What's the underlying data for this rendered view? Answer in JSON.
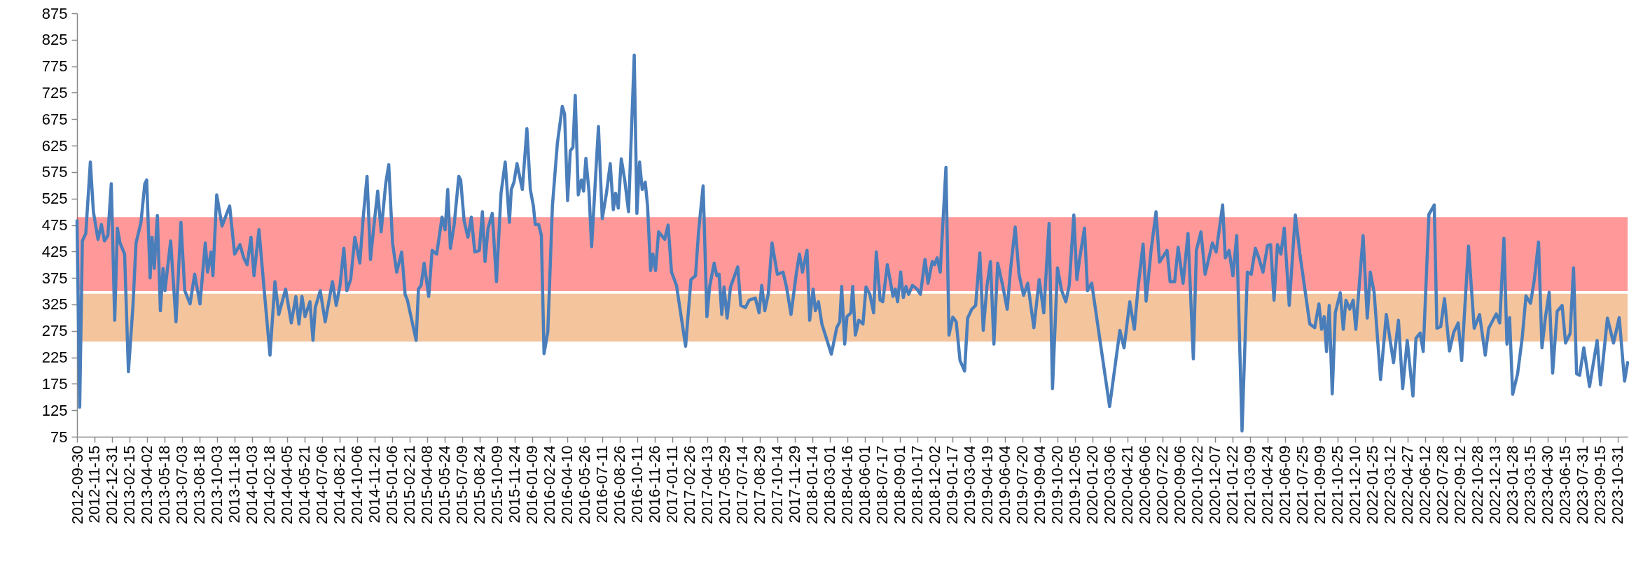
{
  "chart_data": {
    "type": "line",
    "x": [
      "2012-09-30",
      "2012-10-07",
      "2012-10-14",
      "2012-10-23",
      "2012-11-04",
      "2012-11-12",
      "2012-11-24",
      "2012-12-03",
      "2012-12-11",
      "2012-12-20",
      "2012-12-29",
      "2013-01-07",
      "2013-01-14",
      "2013-01-21",
      "2013-02-02",
      "2013-02-12",
      "2013-02-24",
      "2013-03-04",
      "2013-03-17",
      "2013-03-27",
      "2013-04-01",
      "2013-04-10",
      "2013-04-15",
      "2013-04-21",
      "2013-04-29",
      "2013-05-07",
      "2013-05-14",
      "2013-05-19",
      "2013-06-03",
      "2013-06-17",
      "2013-06-30",
      "2013-07-10",
      "2013-07-24",
      "2013-08-05",
      "2013-08-19",
      "2013-09-02",
      "2013-09-08",
      "2013-09-17",
      "2013-09-22",
      "2013-10-02",
      "2013-10-16",
      "2013-11-05",
      "2013-11-18",
      "2013-12-02",
      "2013-12-12",
      "2013-12-21",
      "2013-12-31",
      "2014-01-08",
      "2014-01-21",
      "2014-02-03",
      "2014-02-19",
      "2014-03-04",
      "2014-03-14",
      "2014-04-01",
      "2014-04-16",
      "2014-04-28",
      "2014-05-06",
      "2014-05-14",
      "2014-05-22",
      "2014-06-04",
      "2014-06-12",
      "2014-06-18",
      "2014-07-01",
      "2014-07-14",
      "2014-08-02",
      "2014-08-12",
      "2014-08-22",
      "2014-09-01",
      "2014-09-09",
      "2014-09-19",
      "2014-09-30",
      "2014-10-13",
      "2014-10-22",
      "2014-11-01",
      "2014-11-10",
      "2014-11-20",
      "2014-11-29",
      "2014-12-08",
      "2014-12-20",
      "2014-12-28",
      "2015-01-07",
      "2015-01-18",
      "2015-01-31",
      "2015-02-09",
      "2015-02-15",
      "2015-03-10",
      "2015-03-16",
      "2015-03-23",
      "2015-03-31",
      "2015-04-12",
      "2015-04-21",
      "2015-05-03",
      "2015-05-17",
      "2015-05-25",
      "2015-06-01",
      "2015-06-08",
      "2015-06-18",
      "2015-06-30",
      "2015-07-05",
      "2015-07-14",
      "2015-07-24",
      "2015-08-02",
      "2015-08-11",
      "2015-08-23",
      "2015-08-31",
      "2015-09-07",
      "2015-09-15",
      "2015-09-26",
      "2015-10-07",
      "2015-10-19",
      "2015-10-30",
      "2015-11-10",
      "2015-11-15",
      "2015-11-22",
      "2015-11-30",
      "2015-12-14",
      "2015-12-26",
      "2016-01-04",
      "2016-01-12",
      "2016-01-17",
      "2016-01-26",
      "2016-02-02",
      "2016-02-09",
      "2016-02-19",
      "2016-03-02",
      "2016-03-15",
      "2016-03-28",
      "2016-04-03",
      "2016-04-11",
      "2016-04-18",
      "2016-04-25",
      "2016-05-01",
      "2016-05-09",
      "2016-05-17",
      "2016-05-23",
      "2016-05-29",
      "2016-06-06",
      "2016-06-13",
      "2016-07-01",
      "2016-07-11",
      "2016-07-22",
      "2016-08-01",
      "2016-08-09",
      "2016-08-15",
      "2016-08-22",
      "2016-08-30",
      "2016-09-08",
      "2016-09-18",
      "2016-10-03",
      "2016-10-10",
      "2016-10-17",
      "2016-10-24",
      "2016-11-01",
      "2016-11-07",
      "2016-11-15",
      "2016-11-21",
      "2016-11-28",
      "2016-12-06",
      "2016-12-22",
      "2016-12-31",
      "2017-01-09",
      "2017-01-22",
      "2017-02-15",
      "2017-03-01",
      "2017-03-13",
      "2017-03-21",
      "2017-04-02",
      "2017-04-12",
      "2017-04-19",
      "2017-05-01",
      "2017-05-08",
      "2017-05-14",
      "2017-05-21",
      "2017-05-27",
      "2017-06-04",
      "2017-06-13",
      "2017-07-02",
      "2017-07-10",
      "2017-07-22",
      "2017-08-01",
      "2017-08-17",
      "2017-08-27",
      "2017-09-03",
      "2017-09-11",
      "2017-09-20",
      "2017-09-30",
      "2017-10-14",
      "2017-10-29",
      "2017-11-07",
      "2017-11-19",
      "2017-12-02",
      "2017-12-11",
      "2017-12-19",
      "2017-12-31",
      "2018-01-07",
      "2018-01-16",
      "2018-01-22",
      "2018-01-30",
      "2018-02-08",
      "2018-03-05",
      "2018-03-19",
      "2018-03-27",
      "2018-04-01",
      "2018-04-09",
      "2018-04-15",
      "2018-04-25",
      "2018-04-30",
      "2018-05-07",
      "2018-05-16",
      "2018-05-27",
      "2018-06-04",
      "2018-06-14",
      "2018-06-24",
      "2018-07-01",
      "2018-07-11",
      "2018-07-18",
      "2018-07-30",
      "2018-08-14",
      "2018-08-20",
      "2018-08-26",
      "2018-09-03",
      "2018-09-10",
      "2018-09-17",
      "2018-09-24",
      "2018-10-04",
      "2018-10-16",
      "2018-10-25",
      "2018-11-06",
      "2018-11-14",
      "2018-11-25",
      "2018-12-01",
      "2018-12-08",
      "2018-12-16",
      "2018-12-31",
      "2019-01-08",
      "2019-01-18",
      "2019-01-27",
      "2019-02-06",
      "2019-02-18",
      "2019-02-26",
      "2019-03-09",
      "2019-03-19",
      "2019-03-30",
      "2019-04-08",
      "2019-04-18",
      "2019-04-27",
      "2019-05-06",
      "2019-05-16",
      "2019-05-29",
      "2019-06-10",
      "2019-06-19",
      "2019-07-01",
      "2019-07-11",
      "2019-07-23",
      "2019-08-03",
      "2019-08-19",
      "2019-09-02",
      "2019-09-14",
      "2019-09-28",
      "2019-10-07",
      "2019-10-20",
      "2019-10-31",
      "2019-11-11",
      "2019-11-20",
      "2019-12-02",
      "2019-12-10",
      "2019-12-17",
      "2019-12-30",
      "2020-01-07",
      "2020-01-18",
      "2020-03-05",
      "2020-03-14",
      "2020-04-01",
      "2020-04-12",
      "2020-04-27",
      "2020-05-09",
      "2020-05-19",
      "2020-06-01",
      "2020-06-09",
      "2020-06-22",
      "2020-07-05",
      "2020-07-14",
      "2020-08-03",
      "2020-08-11",
      "2020-08-23",
      "2020-09-01",
      "2020-09-14",
      "2020-09-27",
      "2020-10-11",
      "2020-10-19",
      "2020-10-31",
      "2020-11-11",
      "2020-11-30",
      "2020-12-10",
      "2020-12-27",
      "2021-01-03",
      "2021-01-13",
      "2021-01-23",
      "2021-02-02",
      "2021-02-16",
      "2021-03-02",
      "2021-03-12",
      "2021-03-23",
      "2021-04-01",
      "2021-04-12",
      "2021-04-24",
      "2021-05-02",
      "2021-05-11",
      "2021-05-20",
      "2021-05-29",
      "2021-06-07",
      "2021-06-20",
      "2021-07-06",
      "2021-07-18",
      "2021-08-13",
      "2021-08-26",
      "2021-09-06",
      "2021-09-13",
      "2021-09-20",
      "2021-09-26",
      "2021-10-03",
      "2021-10-11",
      "2021-10-19",
      "2021-11-01",
      "2021-11-09",
      "2021-11-16",
      "2021-11-26",
      "2021-12-05",
      "2021-12-12",
      "2021-12-31",
      "2022-01-11",
      "2022-01-19",
      "2022-01-29",
      "2022-02-15",
      "2022-03-02",
      "2022-03-21",
      "2022-04-03",
      "2022-04-14",
      "2022-04-26",
      "2022-05-11",
      "2022-05-19",
      "2022-05-30",
      "2022-06-07",
      "2022-06-22",
      "2022-07-06",
      "2022-07-13",
      "2022-07-23",
      "2022-08-02",
      "2022-08-15",
      "2022-08-26",
      "2022-09-07",
      "2022-09-16",
      "2022-10-04",
      "2022-10-19",
      "2022-11-02",
      "2022-11-17",
      "2022-11-26",
      "2022-12-16",
      "2022-12-25",
      "2023-01-05",
      "2023-01-13",
      "2023-01-20",
      "2023-01-28",
      "2023-02-10",
      "2023-02-22",
      "2023-03-04",
      "2023-03-16",
      "2023-03-26",
      "2023-04-06",
      "2023-04-15",
      "2023-04-24",
      "2023-05-04",
      "2023-05-13",
      "2023-05-25",
      "2023-06-07",
      "2023-06-16",
      "2023-06-28",
      "2023-07-07",
      "2023-07-15",
      "2023-07-23",
      "2023-08-03",
      "2023-08-18",
      "2023-09-07",
      "2023-09-16",
      "2023-10-04",
      "2023-10-20",
      "2023-11-04",
      "2023-11-18",
      "2023-11-26"
    ],
    "series": [
      {
        "color": "#4a7ebb",
        "values": [
          483,
          131,
          445,
          459,
          594,
          500,
          448,
          476,
          445,
          455,
          553,
          295,
          469,
          441,
          420,
          198,
          323,
          441,
          480,
          553,
          560,
          375,
          452,
          393,
          493,
          313,
          393,
          351,
          445,
          292,
          480,
          351,
          326,
          382,
          326,
          441,
          386,
          424,
          379,
          532,
          473,
          511,
          420,
          438,
          413,
          400,
          452,
          379,
          466,
          358,
          229,
          368,
          306,
          354,
          290,
          340,
          288,
          340,
          302,
          330,
          257,
          319,
          351,
          292,
          368,
          323,
          361,
          431,
          351,
          372,
          452,
          403,
          490,
          567,
          410,
          480,
          539,
          462,
          553,
          589,
          441,
          386,
          424,
          344,
          333,
          257,
          354,
          361,
          403,
          340,
          427,
          420,
          490,
          466,
          542,
          431,
          476,
          567,
          560,
          483,
          452,
          490,
          424,
          427,
          500,
          406,
          469,
          497,
          368,
          535,
          594,
          480,
          542,
          556,
          591,
          542,
          657,
          542,
          511,
          476,
          476,
          455,
          232,
          274,
          511,
          629,
          699,
          685,
          521,
          615,
          622,
          720,
          532,
          560,
          539,
          601,
          539,
          434,
          661,
          487,
          535,
          591,
          504,
          535,
          507,
          600,
          560,
          500,
          796,
          497,
          594,
          542,
          556,
          511,
          389,
          420,
          389,
          462,
          448,
          475,
          386,
          361,
          246,
          372,
          379,
          462,
          549,
          302,
          358,
          403,
          379,
          382,
          306,
          358,
          299,
          358,
          396,
          323,
          319,
          333,
          337,
          309,
          361,
          313,
          344,
          441,
          382,
          386,
          358,
          306,
          379,
          420,
          386,
          427,
          295,
          354,
          313,
          330,
          288,
          231,
          281,
          292,
          359,
          250,
          302,
          309,
          359,
          267,
          295,
          288,
          358,
          344,
          309,
          424,
          333,
          330,
          400,
          340,
          354,
          330,
          386,
          338,
          359,
          344,
          361,
          354,
          344,
          410,
          365,
          406,
          400,
          413,
          386,
          584,
          267,
          301,
          292,
          219,
          199,
          299,
          316,
          323,
          422,
          276,
          361,
          406,
          250,
          403,
          361,
          316,
          393,
          471,
          382,
          342,
          365,
          281,
          372,
          309,
          478,
          166,
          394,
          351,
          330,
          361,
          494,
          372,
          410,
          469,
          351,
          365,
          132,
          180,
          276,
          243,
          330,
          278,
          358,
          439,
          331,
          427,
          500,
          405,
          427,
          368,
          368,
          433,
          365,
          459,
          222,
          427,
          462,
          382,
          441,
          424,
          513,
          413,
          427,
          379,
          455,
          86,
          386,
          382,
          431,
          413,
          386,
          436,
          438,
          333,
          438,
          420,
          469,
          323,
          494,
          420,
          288,
          281,
          326,
          278,
          302,
          236,
          323,
          156,
          309,
          347,
          278,
          333,
          316,
          333,
          278,
          455,
          299,
          386,
          348,
          183,
          306,
          215,
          295,
          166,
          257,
          152,
          261,
          271,
          236,
          495,
          513,
          280,
          283,
          336,
          237,
          272,
          290,
          219,
          435,
          280,
          306,
          229,
          280,
          307,
          290,
          450,
          250,
          300,
          155,
          194,
          261,
          341,
          327,
          372,
          443,
          243,
          300,
          348,
          195,
          312,
          323,
          252,
          270,
          394,
          194,
          191,
          243,
          170,
          257,
          173,
          299,
          252,
          300,
          180,
          215
        ]
      }
    ],
    "xlim": [
      "2012-09-30",
      "2023-11-26"
    ],
    "xticks": [
      "2012-09-30",
      "2012-11-15",
      "2012-12-31",
      "2013-02-15",
      "2013-04-02",
      "2013-05-18",
      "2013-07-03",
      "2013-08-18",
      "2013-10-03",
      "2013-11-18",
      "2014-01-03",
      "2014-02-18",
      "2014-04-05",
      "2014-05-21",
      "2014-07-06",
      "2014-08-21",
      "2014-10-06",
      "2014-11-21",
      "2015-01-06",
      "2015-02-21",
      "2015-04-08",
      "2015-05-24",
      "2015-07-09",
      "2015-08-24",
      "2015-10-09",
      "2015-11-24",
      "2016-01-09",
      "2016-02-24",
      "2016-04-10",
      "2016-05-26",
      "2016-07-11",
      "2016-08-26",
      "2016-10-11",
      "2016-11-26",
      "2017-01-11",
      "2017-02-26",
      "2017-04-13",
      "2017-05-29",
      "2017-07-14",
      "2017-08-29",
      "2017-10-14",
      "2017-11-29",
      "2018-01-14",
      "2018-03-01",
      "2018-04-16",
      "2018-06-01",
      "2018-07-17",
      "2018-09-01",
      "2018-10-17",
      "2018-12-02",
      "2019-01-17",
      "2019-03-04",
      "2019-04-19",
      "2019-06-04",
      "2019-07-20",
      "2019-09-04",
      "2019-10-20",
      "2019-12-05",
      "2020-01-20",
      "2020-03-06",
      "2020-04-21",
      "2020-06-06",
      "2020-07-22",
      "2020-09-06",
      "2020-10-22",
      "2020-12-07",
      "2021-01-22",
      "2021-03-09",
      "2021-04-24",
      "2021-06-09",
      "2021-07-25",
      "2021-09-09",
      "2021-10-25",
      "2021-12-10",
      "2022-01-25",
      "2022-03-12",
      "2022-04-27",
      "2022-06-12",
      "2022-07-28",
      "2022-09-12",
      "2022-10-28",
      "2022-12-13",
      "2023-01-28",
      "2023-03-15",
      "2023-04-30",
      "2023-06-15",
      "2023-07-31",
      "2023-09-15",
      "2023-10-31"
    ],
    "ylim": [
      75,
      875
    ],
    "yticks": [
      75,
      125,
      175,
      225,
      275,
      325,
      375,
      425,
      475,
      525,
      575,
      625,
      675,
      725,
      775,
      825,
      875
    ],
    "bands": [
      {
        "axis": "y",
        "from": 350,
        "to": 490,
        "color": "#ff0000"
      },
      {
        "axis": "y",
        "from": 255,
        "to": 345,
        "color": "#e46c0a"
      }
    ]
  }
}
